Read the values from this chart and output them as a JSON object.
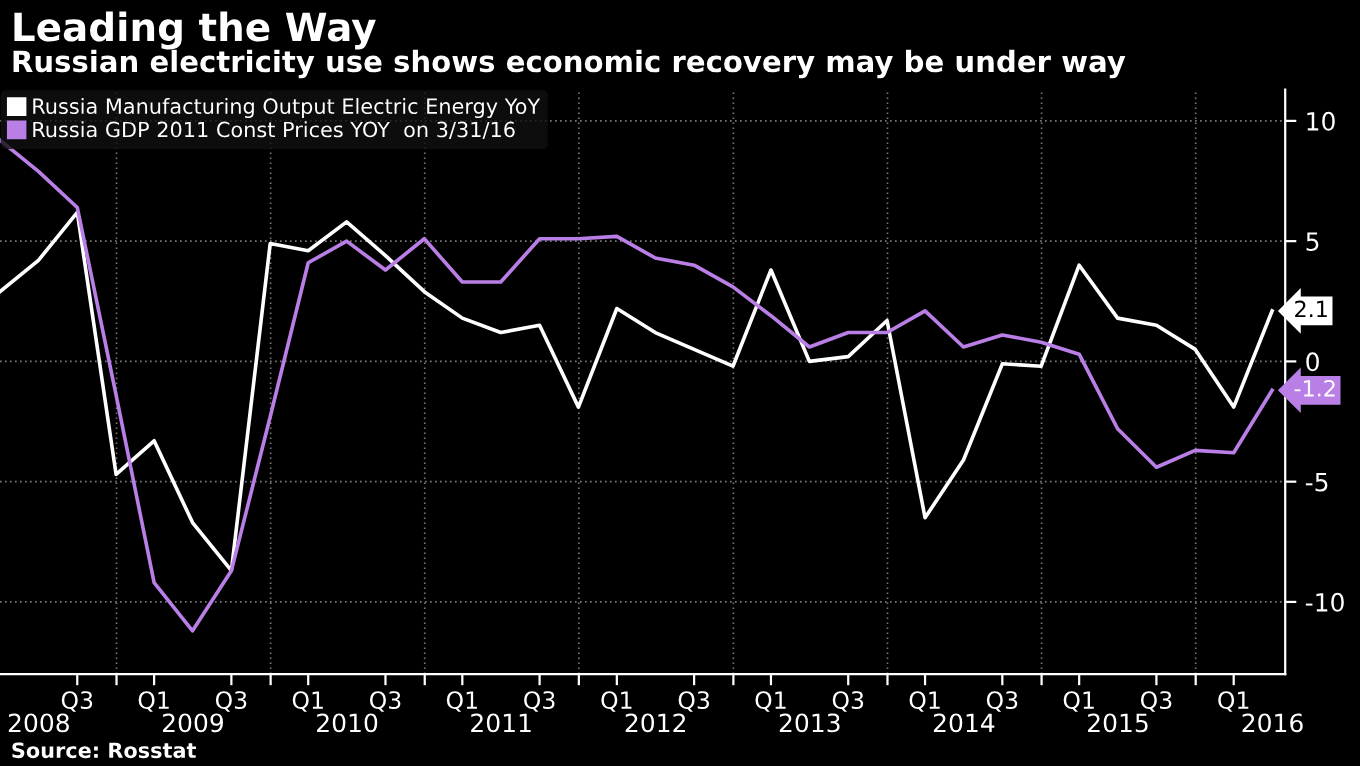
{
  "chart_data": {
    "type": "line",
    "title": "Leading the Way",
    "subtitle": "Russian electricity use shows economic recovery may be under way",
    "x": [
      "2008-03-31",
      "2008-06-30",
      "2008-09-30",
      "2008-12-31",
      "2009-03-31",
      "2009-06-30",
      "2009-09-30",
      "2009-12-31",
      "2010-03-31",
      "2010-06-30",
      "2010-09-30",
      "2010-12-31",
      "2011-03-31",
      "2011-06-30",
      "2011-09-30",
      "2011-12-31",
      "2012-03-31",
      "2012-06-30",
      "2012-09-30",
      "2012-12-31",
      "2013-03-31",
      "2013-06-30",
      "2013-09-30",
      "2013-12-31",
      "2014-03-31",
      "2014-06-30",
      "2014-09-30",
      "2014-12-31",
      "2015-03-31",
      "2015-06-30",
      "2015-09-30",
      "2015-12-31",
      "2016-03-31",
      "2016-06-30"
    ],
    "series": [
      {
        "name": "Russia Manufacturing Output Electric Energy YoY",
        "color": "#ffffff",
        "values": [
          2.9,
          4.2,
          6.2,
          -4.7,
          -3.3,
          -6.7,
          -8.7,
          4.9,
          4.6,
          5.8,
          4.4,
          2.9,
          1.8,
          1.2,
          1.5,
          -1.9,
          2.2,
          1.2,
          0.5,
          -0.2,
          3.8,
          0.0,
          0.2,
          1.7,
          -6.5,
          -4.1,
          -0.1,
          -0.2,
          4.0,
          1.8,
          1.5,
          0.5,
          -1.9,
          2.1
        ],
        "value_labels": [
          null,
          null,
          null,
          null,
          null,
          null,
          null,
          null,
          null,
          null,
          null,
          null,
          null,
          null,
          null,
          null,
          null,
          null,
          null,
          null,
          null,
          null,
          null,
          null,
          null,
          null,
          null,
          null,
          null,
          null,
          null,
          null,
          null,
          "2.1"
        ]
      },
      {
        "name": "Russia GDP 2011 Const Prices YOY  on 3/31/16",
        "color": "#b97fe6",
        "values": [
          9.2,
          7.9,
          6.4,
          -1.4,
          -9.2,
          -11.2,
          -8.7,
          -2.3,
          4.1,
          5.0,
          3.8,
          5.1,
          3.3,
          3.3,
          5.1,
          5.1,
          5.2,
          4.3,
          4.0,
          3.1,
          1.9,
          0.6,
          1.2,
          1.2,
          2.1,
          0.6,
          1.1,
          0.8,
          0.3,
          -2.8,
          -4.4,
          -3.7,
          -3.8,
          -1.2
        ],
        "value_labels": [
          null,
          null,
          null,
          null,
          null,
          null,
          null,
          null,
          null,
          null,
          null,
          null,
          null,
          null,
          null,
          null,
          null,
          null,
          null,
          null,
          null,
          null,
          null,
          null,
          null,
          null,
          null,
          null,
          null,
          null,
          null,
          null,
          null,
          "-1.2"
        ]
      }
    ],
    "xlim": [
      "2008-03-31",
      "2016-07-31"
    ],
    "xticks": [
      {
        "value": "2008-09-30",
        "label": "Q3"
      },
      {
        "value": "2009-01-01",
        "label": null
      },
      {
        "value": "2009-03-31",
        "label": "Q1"
      },
      {
        "value": "2009-09-30",
        "label": "Q3"
      },
      {
        "value": "2010-01-01",
        "label": null
      },
      {
        "value": "2010-03-31",
        "label": "Q1"
      },
      {
        "value": "2010-09-30",
        "label": "Q3"
      },
      {
        "value": "2011-01-01",
        "label": null
      },
      {
        "value": "2011-03-31",
        "label": "Q1"
      },
      {
        "value": "2011-09-30",
        "label": "Q3"
      },
      {
        "value": "2012-01-01",
        "label": null
      },
      {
        "value": "2012-03-31",
        "label": "Q1"
      },
      {
        "value": "2012-09-30",
        "label": "Q3"
      },
      {
        "value": "2013-01-01",
        "label": null
      },
      {
        "value": "2013-03-31",
        "label": "Q1"
      },
      {
        "value": "2013-09-30",
        "label": "Q3"
      },
      {
        "value": "2014-01-01",
        "label": null
      },
      {
        "value": "2014-03-31",
        "label": "Q1"
      },
      {
        "value": "2014-09-30",
        "label": "Q3"
      },
      {
        "value": "2015-01-01",
        "label": null
      },
      {
        "value": "2015-03-31",
        "label": "Q1"
      },
      {
        "value": "2015-09-30",
        "label": "Q3"
      },
      {
        "value": "2016-01-01",
        "label": null
      },
      {
        "value": "2016-03-31",
        "label": "Q1"
      }
    ],
    "x2lim": [
      "2008-03-31",
      "2016-07-31"
    ],
    "x2ticks": [
      {
        "value": "2008-07-01",
        "label": "2008"
      },
      {
        "value": "2009-07-01",
        "label": "2009"
      },
      {
        "value": "2010-07-01",
        "label": "2010"
      },
      {
        "value": "2011-07-01",
        "label": "2011"
      },
      {
        "value": "2012-07-01",
        "label": "2012"
      },
      {
        "value": "2013-07-01",
        "label": "2013"
      },
      {
        "value": "2014-07-01",
        "label": "2014"
      },
      {
        "value": "2015-07-01",
        "label": "2015"
      },
      {
        "value": "2016-07-01",
        "label": "2016"
      }
    ],
    "ylim": [
      -13,
      11.3
    ],
    "yticks": [
      10,
      5,
      0,
      -5,
      -10
    ],
    "grid": true,
    "legend": "top left",
    "marker": "none",
    "line_style": "solid",
    "annotations": [
      "Source: Rosstat"
    ]
  }
}
